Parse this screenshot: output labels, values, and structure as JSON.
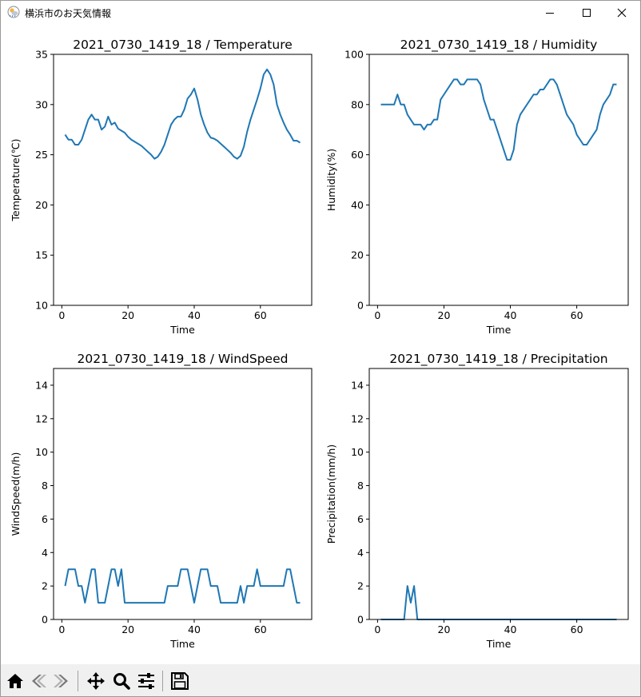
{
  "window": {
    "title": "横浜市のお天気情報",
    "icons": {
      "app": "weather-app-icon",
      "minimize": "minimize-icon",
      "maximize": "maximize-icon",
      "close": "close-icon"
    }
  },
  "toolbar": {
    "buttons": [
      {
        "name": "home-button",
        "icon": "home-icon"
      },
      {
        "name": "back-button",
        "icon": "arrow-left-icon"
      },
      {
        "name": "forward-button",
        "icon": "arrow-right-icon"
      },
      {
        "name": "pan-button",
        "icon": "move-icon"
      },
      {
        "name": "zoom-button",
        "icon": "magnifier-icon"
      },
      {
        "name": "configure-subplots-button",
        "icon": "sliders-icon"
      },
      {
        "name": "save-button",
        "icon": "floppy-disk-icon"
      }
    ]
  },
  "colors": {
    "line": "#1f77b4"
  },
  "chart_data": [
    {
      "type": "line",
      "title": "2021_0730_1419_18 / Temperature",
      "xlabel": "Time",
      "ylabel": "Temperature(℃)",
      "xlim": [
        -2.5,
        75.5
      ],
      "ylim": [
        10,
        35
      ],
      "xticks": [
        0,
        20,
        40,
        60
      ],
      "yticks": [
        10,
        15,
        20,
        25,
        30,
        35
      ],
      "grid": false,
      "x": [
        1,
        2,
        3,
        4,
        5,
        6,
        7,
        8,
        9,
        10,
        11,
        12,
        13,
        14,
        15,
        16,
        17,
        18,
        19,
        20,
        21,
        22,
        23,
        24,
        25,
        26,
        27,
        28,
        29,
        30,
        31,
        32,
        33,
        34,
        35,
        36,
        37,
        38,
        39,
        40,
        41,
        42,
        43,
        44,
        45,
        46,
        47,
        48,
        49,
        50,
        51,
        52,
        53,
        54,
        55,
        56,
        57,
        58,
        59,
        60,
        61,
        62,
        63,
        64,
        65,
        66,
        67,
        68,
        69,
        70,
        71,
        72
      ],
      "series": [
        {
          "values": [
            27.0,
            26.5,
            26.5,
            26.0,
            26.0,
            26.5,
            27.5,
            28.5,
            29.0,
            28.5,
            28.5,
            27.5,
            27.8,
            28.8,
            28.0,
            28.2,
            27.6,
            27.4,
            27.2,
            26.8,
            26.5,
            26.3,
            26.1,
            25.9,
            25.6,
            25.3,
            25.0,
            24.6,
            24.8,
            25.3,
            26.0,
            27.0,
            28.0,
            28.5,
            28.8,
            28.8,
            29.5,
            30.6,
            31.0,
            31.6,
            30.5,
            29.0,
            28.0,
            27.2,
            26.7,
            26.6,
            26.4,
            26.1,
            25.8,
            25.5,
            25.2,
            24.8,
            24.6,
            24.9,
            25.8,
            27.3,
            28.5,
            29.5,
            30.5,
            31.6,
            33.0,
            33.5,
            33.0,
            32.0,
            30.0,
            29.0,
            28.2,
            27.5,
            27.0,
            26.4,
            26.4,
            26.2
          ]
        }
      ]
    },
    {
      "type": "line",
      "title": "2021_0730_1419_18 / Humidity",
      "xlabel": "Time",
      "ylabel": "Humidity(%)",
      "xlim": [
        -2.5,
        75.5
      ],
      "ylim": [
        0,
        100
      ],
      "xticks": [
        0,
        20,
        40,
        60
      ],
      "yticks": [
        0,
        20,
        40,
        60,
        80,
        100
      ],
      "grid": false,
      "x": [
        1,
        2,
        3,
        4,
        5,
        6,
        7,
        8,
        9,
        10,
        11,
        12,
        13,
        14,
        15,
        16,
        17,
        18,
        19,
        20,
        21,
        22,
        23,
        24,
        25,
        26,
        27,
        28,
        29,
        30,
        31,
        32,
        33,
        34,
        35,
        36,
        37,
        38,
        39,
        40,
        41,
        42,
        43,
        44,
        45,
        46,
        47,
        48,
        49,
        50,
        51,
        52,
        53,
        54,
        55,
        56,
        57,
        58,
        59,
        60,
        61,
        62,
        63,
        64,
        65,
        66,
        67,
        68,
        69,
        70,
        71,
        72
      ],
      "series": [
        {
          "values": [
            80,
            80,
            80,
            80,
            80,
            84,
            80,
            80,
            76,
            74,
            72,
            72,
            72,
            70,
            72,
            72,
            74,
            74,
            82,
            84,
            86,
            88,
            90,
            90,
            88,
            88,
            90,
            90,
            90,
            90,
            88,
            82,
            78,
            74,
            74,
            70,
            66,
            62,
            58,
            58,
            62,
            72,
            76,
            78,
            80,
            82,
            84,
            84,
            86,
            86,
            88,
            90,
            90,
            88,
            84,
            80,
            76,
            74,
            72,
            68,
            66,
            64,
            64,
            66,
            68,
            70,
            76,
            80,
            82,
            84,
            88,
            88
          ]
        }
      ]
    },
    {
      "type": "line",
      "title": "2021_0730_1419_18 / WindSpeed",
      "xlabel": "Time",
      "ylabel": "WindSpeed(m/h)",
      "xlim": [
        -2.5,
        75.5
      ],
      "ylim": [
        0,
        15
      ],
      "xticks": [
        0,
        20,
        40,
        60
      ],
      "yticks": [
        0,
        2,
        4,
        6,
        8,
        10,
        12,
        14
      ],
      "grid": false,
      "x": [
        1,
        2,
        3,
        4,
        5,
        6,
        7,
        8,
        9,
        10,
        11,
        12,
        13,
        14,
        15,
        16,
        17,
        18,
        19,
        20,
        21,
        22,
        23,
        24,
        25,
        26,
        27,
        28,
        29,
        30,
        31,
        32,
        33,
        34,
        35,
        36,
        37,
        38,
        39,
        40,
        41,
        42,
        43,
        44,
        45,
        46,
        47,
        48,
        49,
        50,
        51,
        52,
        53,
        54,
        55,
        56,
        57,
        58,
        59,
        60,
        61,
        62,
        63,
        64,
        65,
        66,
        67,
        68,
        69,
        70,
        71,
        72
      ],
      "series": [
        {
          "values": [
            2,
            3,
            3,
            3,
            2,
            2,
            1,
            2,
            3,
            3,
            1,
            1,
            1,
            2,
            3,
            3,
            2,
            3,
            1,
            1,
            1,
            1,
            1,
            1,
            1,
            1,
            1,
            1,
            1,
            1,
            1,
            2,
            2,
            2,
            2,
            3,
            3,
            3,
            2,
            1,
            2,
            3,
            3,
            3,
            2,
            2,
            2,
            1,
            1,
            1,
            1,
            1,
            1,
            2,
            1,
            2,
            2,
            2,
            3,
            2,
            2,
            2,
            2,
            2,
            2,
            2,
            2,
            3,
            3,
            2,
            1,
            1
          ]
        }
      ]
    },
    {
      "type": "line",
      "title": "2021_0730_1419_18 / Precipitation",
      "xlabel": "Time",
      "ylabel": "Precipitation(mm/h)",
      "xlim": [
        -2.5,
        75.5
      ],
      "ylim": [
        0,
        15
      ],
      "xticks": [
        0,
        20,
        40,
        60
      ],
      "yticks": [
        0,
        2,
        4,
        6,
        8,
        10,
        12,
        14
      ],
      "grid": false,
      "x": [
        1,
        2,
        3,
        4,
        5,
        6,
        7,
        8,
        9,
        10,
        11,
        12,
        13,
        14,
        15,
        16,
        17,
        18,
        19,
        20,
        21,
        22,
        23,
        24,
        25,
        26,
        27,
        28,
        29,
        30,
        31,
        32,
        33,
        34,
        35,
        36,
        37,
        38,
        39,
        40,
        41,
        42,
        43,
        44,
        45,
        46,
        47,
        48,
        49,
        50,
        51,
        52,
        53,
        54,
        55,
        56,
        57,
        58,
        59,
        60,
        61,
        62,
        63,
        64,
        65,
        66,
        67,
        68,
        69,
        70,
        71,
        72
      ],
      "series": [
        {
          "values": [
            0,
            0,
            0,
            0,
            0,
            0,
            0,
            0,
            2,
            1,
            2,
            0,
            0,
            0,
            0,
            0,
            0,
            0,
            0,
            0,
            0,
            0,
            0,
            0,
            0,
            0,
            0,
            0,
            0,
            0,
            0,
            0,
            0,
            0,
            0,
            0,
            0,
            0,
            0,
            0,
            0,
            0,
            0,
            0,
            0,
            0,
            0,
            0,
            0,
            0,
            0,
            0,
            0,
            0,
            0,
            0,
            0,
            0,
            0,
            0,
            0,
            0,
            0,
            0,
            0,
            0,
            0,
            0,
            0,
            0,
            0,
            0
          ]
        }
      ]
    }
  ]
}
